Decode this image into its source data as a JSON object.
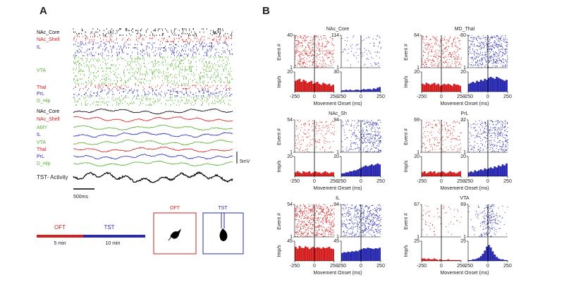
{
  "panel_a": {
    "label": "A",
    "raster_rows": [
      {
        "text": "NAc_Core",
        "color": "#000000"
      },
      {
        "text": "NAc_Shell",
        "color": "#d42020"
      },
      {
        "text": "IL",
        "color": "#2a2ab0"
      },
      {
        "text": "VTA",
        "color": "#58b030"
      },
      {
        "text": "Thal",
        "color": "#d42020"
      },
      {
        "text": "PrL",
        "color": "#2a2ab0"
      },
      {
        "text": "D_Hip",
        "color": "#58b030"
      }
    ],
    "trace_rows": [
      {
        "text": "NAc_Core",
        "color": "#000000"
      },
      {
        "text": "NAc_Shell",
        "color": "#d42020"
      },
      {
        "text": "AMY",
        "color": "#58b030"
      },
      {
        "text": "IL",
        "color": "#2a2ab0"
      },
      {
        "text": "VTA",
        "color": "#58b030"
      },
      {
        "text": "Thal",
        "color": "#d42020"
      },
      {
        "text": "PrL",
        "color": "#2a2ab0"
      },
      {
        "text": "D_Hip",
        "color": "#58b030"
      }
    ],
    "activity_label": "TST- Activity",
    "voltage_scale": "5mV",
    "time_scale": "500ms",
    "timeline": {
      "oft": "OFT",
      "tst": "TST",
      "oft_duration": "5 min",
      "tst_duration": "10 min"
    },
    "arena_labels": [
      "OFT",
      "TST"
    ]
  },
  "panel_b_label": "B",
  "chart_data": [
    {
      "type": "histogram",
      "title": "NAc_Core",
      "xlabel": "Movement Onset (ms)",
      "raster_ylabel": "Event #",
      "ylabel": "Imp/s",
      "xlim": [
        -250,
        250
      ],
      "xticks": [
        -250,
        0,
        250
      ],
      "bins": [
        -250,
        -225,
        -200,
        -175,
        -150,
        -125,
        -100,
        -75,
        -50,
        -25,
        0,
        25,
        50,
        75,
        100,
        125,
        150,
        175,
        200,
        225,
        250
      ],
      "series": [
        {
          "color": "#d42020",
          "raster_yticks": [
            1,
            40
          ],
          "ylim": [
            0,
            20
          ],
          "yticks": [
            20
          ],
          "values": [
            11,
            12,
            13,
            10,
            12,
            11,
            9,
            10,
            11,
            8,
            9,
            10,
            8,
            7,
            9,
            8,
            7,
            8,
            6,
            7
          ]
        },
        {
          "color": "#2a2ab0",
          "raster_yticks": [
            1,
            114
          ],
          "ylim": [
            0,
            30
          ],
          "yticks": [
            30
          ],
          "values": [
            2,
            2,
            3,
            2,
            3,
            2,
            2,
            3,
            3,
            2,
            3,
            4,
            3,
            4,
            4,
            3,
            5,
            4,
            6,
            7
          ]
        }
      ]
    },
    {
      "type": "histogram",
      "title": "MD_Thal",
      "xlabel": "Movement Onset (ms)",
      "raster_ylabel": "Event #",
      "ylabel": "Imp/s",
      "xlim": [
        -250,
        250
      ],
      "xticks": [
        -250,
        0,
        250
      ],
      "bins": [
        -250,
        -225,
        -200,
        -175,
        -150,
        -125,
        -100,
        -75,
        -50,
        -25,
        0,
        25,
        50,
        75,
        100,
        125,
        150,
        175,
        200,
        225,
        250
      ],
      "series": [
        {
          "color": "#d42020",
          "raster_yticks": [
            1,
            64
          ],
          "ylim": [
            0,
            20
          ],
          "yticks": [
            20
          ],
          "values": [
            8,
            7,
            9,
            8,
            7,
            8,
            9,
            7,
            8,
            6,
            7,
            8,
            7,
            8,
            7,
            6,
            8,
            7,
            7,
            6
          ]
        },
        {
          "color": "#2a2ab0",
          "raster_yticks": [
            1,
            60
          ],
          "ylim": [
            0,
            20
          ],
          "yticks": [
            20
          ],
          "values": [
            8,
            9,
            10,
            9,
            11,
            10,
            12,
            11,
            13,
            12,
            14,
            15,
            14,
            13,
            15,
            14,
            13,
            12,
            11,
            12
          ]
        }
      ]
    },
    {
      "type": "histogram",
      "title": "NAc_Sh",
      "xlabel": "Movement Onset (ms)",
      "raster_ylabel": "Event #",
      "ylabel": "Imp/s",
      "xlim": [
        -250,
        250
      ],
      "xticks": [
        -250,
        0,
        250
      ],
      "bins": [
        -250,
        -225,
        -200,
        -175,
        -150,
        -125,
        -100,
        -75,
        -50,
        -25,
        0,
        25,
        50,
        75,
        100,
        125,
        150,
        175,
        200,
        225,
        250
      ],
      "series": [
        {
          "color": "#d42020",
          "raster_yticks": [
            1,
            54
          ],
          "ylim": [
            0,
            20
          ],
          "yticks": [
            20
          ],
          "values": [
            4,
            5,
            4,
            3,
            5,
            4,
            4,
            5,
            3,
            4,
            5,
            4,
            4,
            3,
            4,
            5,
            4,
            3,
            4,
            4
          ]
        },
        {
          "color": "#2a2ab0",
          "raster_yticks": [
            1,
            94
          ],
          "ylim": [
            0,
            20
          ],
          "yticks": [
            20
          ],
          "values": [
            3,
            3,
            4,
            4,
            5,
            5,
            6,
            6,
            7,
            8,
            9,
            10,
            11,
            10,
            11,
            12,
            11,
            12,
            13,
            12
          ]
        }
      ]
    },
    {
      "type": "histogram",
      "title": "PrL",
      "xlabel": "Movement Onset (ms)",
      "raster_ylabel": "Event #",
      "ylabel": "Imp/s",
      "xlim": [
        -250,
        250
      ],
      "xticks": [
        -250,
        0,
        250
      ],
      "bins": [
        -250,
        -225,
        -200,
        -175,
        -150,
        -125,
        -100,
        -75,
        -50,
        -25,
        0,
        25,
        50,
        75,
        100,
        125,
        150,
        175,
        200,
        225,
        250
      ],
      "series": [
        {
          "color": "#d42020",
          "raster_yticks": [
            1,
            69
          ],
          "ylim": [
            0,
            20
          ],
          "yticks": [
            20
          ],
          "values": [
            4,
            5,
            3,
            4,
            5,
            4,
            5,
            3,
            4,
            4,
            5,
            4,
            3,
            4,
            5,
            4,
            4,
            3,
            4,
            5
          ]
        },
        {
          "color": "#2a2ab0",
          "raster_yticks": [
            1,
            32
          ],
          "ylim": [
            0,
            20
          ],
          "yticks": [
            20
          ],
          "values": [
            4,
            5,
            4,
            6,
            5,
            6,
            7,
            6,
            8,
            7,
            8,
            9,
            8,
            10,
            9,
            11,
            10,
            12,
            11,
            13
          ]
        }
      ]
    },
    {
      "type": "histogram",
      "title": "IL",
      "xlabel": "Movement Onset (ms)",
      "raster_ylabel": "Event #",
      "ylabel": "Imp/s",
      "xlim": [
        -250,
        250
      ],
      "xticks": [
        -250,
        0,
        250
      ],
      "bins": [
        -250,
        -225,
        -200,
        -175,
        -150,
        -125,
        -100,
        -75,
        -50,
        -25,
        0,
        25,
        50,
        75,
        100,
        125,
        150,
        175,
        200,
        225,
        250
      ],
      "series": [
        {
          "color": "#d42020",
          "raster_yticks": [
            1,
            54
          ],
          "ylim": [
            0,
            45
          ],
          "yticks": [
            45
          ],
          "values": [
            32,
            28,
            34,
            30,
            29,
            33,
            31,
            27,
            30,
            32,
            29,
            31,
            30,
            28,
            31,
            29,
            30,
            32,
            28,
            27
          ]
        },
        {
          "color": "#2a2ab0",
          "raster_yticks": [
            1,
            94
          ],
          "ylim": [
            0,
            45
          ],
          "yticks": [
            45
          ],
          "values": [
            18,
            20,
            19,
            21,
            20,
            22,
            21,
            23,
            22,
            25,
            27,
            29,
            28,
            30,
            29,
            28,
            27,
            29,
            28,
            30
          ]
        }
      ]
    },
    {
      "type": "histogram",
      "title": "VTA",
      "xlabel": "Movement Onset (ms)",
      "raster_ylabel": "Event #",
      "ylabel": "Imp/s",
      "xlim": [
        -250,
        250
      ],
      "xticks": [
        -250,
        0,
        250
      ],
      "bins": [
        -250,
        -225,
        -200,
        -175,
        -150,
        -125,
        -100,
        -75,
        -50,
        -25,
        0,
        25,
        50,
        75,
        100,
        125,
        150,
        175,
        200,
        225,
        250
      ],
      "series": [
        {
          "color": "#d42020",
          "raster_yticks": [
            1,
            67
          ],
          "ylim": [
            0,
            25
          ],
          "yticks": [
            25
          ],
          "values": [
            3,
            3,
            2,
            3,
            2,
            2,
            3,
            2,
            1,
            2,
            1,
            1,
            1,
            2,
            1,
            1,
            1,
            1,
            1,
            1
          ]
        },
        {
          "color": "#2a2ab0",
          "raster_yticks": [
            1,
            69
          ],
          "ylim": [
            0,
            25
          ],
          "yticks": [
            25
          ],
          "values": [
            1,
            1,
            2,
            2,
            3,
            4,
            6,
            9,
            13,
            18,
            20,
            17,
            12,
            8,
            5,
            3,
            2,
            2,
            1,
            1
          ]
        }
      ]
    }
  ]
}
